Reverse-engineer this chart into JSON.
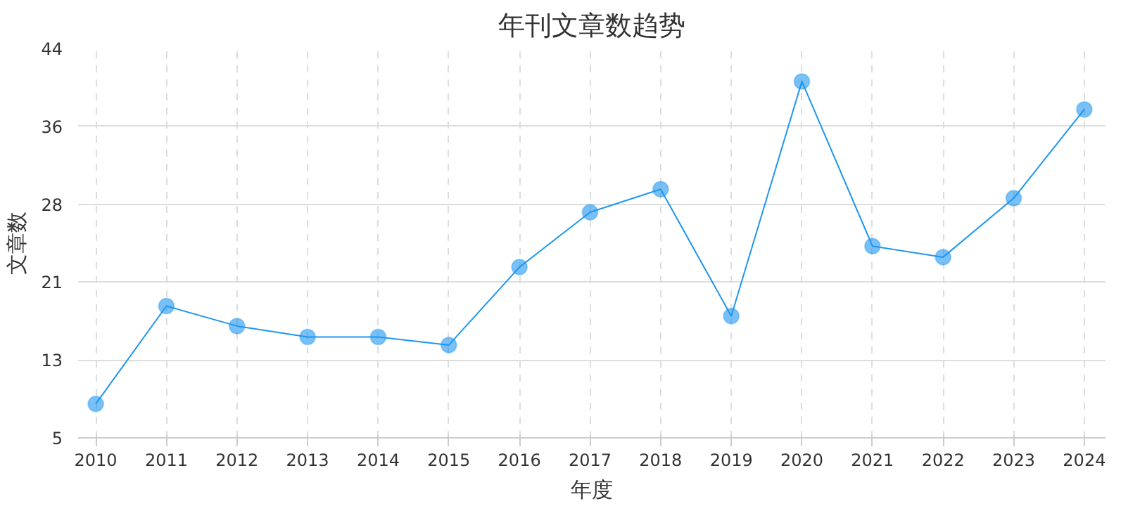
{
  "chart_data": {
    "type": "line",
    "title": "年刊文章数趋势",
    "xlabel": "年度",
    "ylabel": "文章数",
    "x": [
      2010,
      2011,
      2012,
      2013,
      2014,
      2015,
      2016,
      2017,
      2018,
      2019,
      2020,
      2021,
      2022,
      2023,
      2024
    ],
    "series": [
      {
        "color": "#1e96f0",
        "values": [
          8.4,
          18.2,
          16.2,
          15.1,
          15.1,
          14.3,
          22.1,
          27.6,
          29.9,
          17.2,
          40.7,
          24.2,
          23.1,
          29.0,
          37.9
        ]
      }
    ],
    "xlim": [
      2009.75,
      2024.3
    ],
    "xticks": [
      2010,
      2011,
      2012,
      2013,
      2014,
      2015,
      2016,
      2017,
      2018,
      2019,
      2020,
      2021,
      2022,
      2023,
      2024
    ],
    "ylim": [
      5,
      44
    ],
    "yticks": [
      5,
      {
        "value": 12.8,
        "label": "13"
      },
      {
        "value": 20.6,
        "label": "21"
      },
      {
        "value": 28.4,
        "label": "28"
      },
      {
        "value": 36.2,
        "label": "36"
      },
      44
    ],
    "grid": true,
    "marker": "circle",
    "line_style": "solid"
  }
}
